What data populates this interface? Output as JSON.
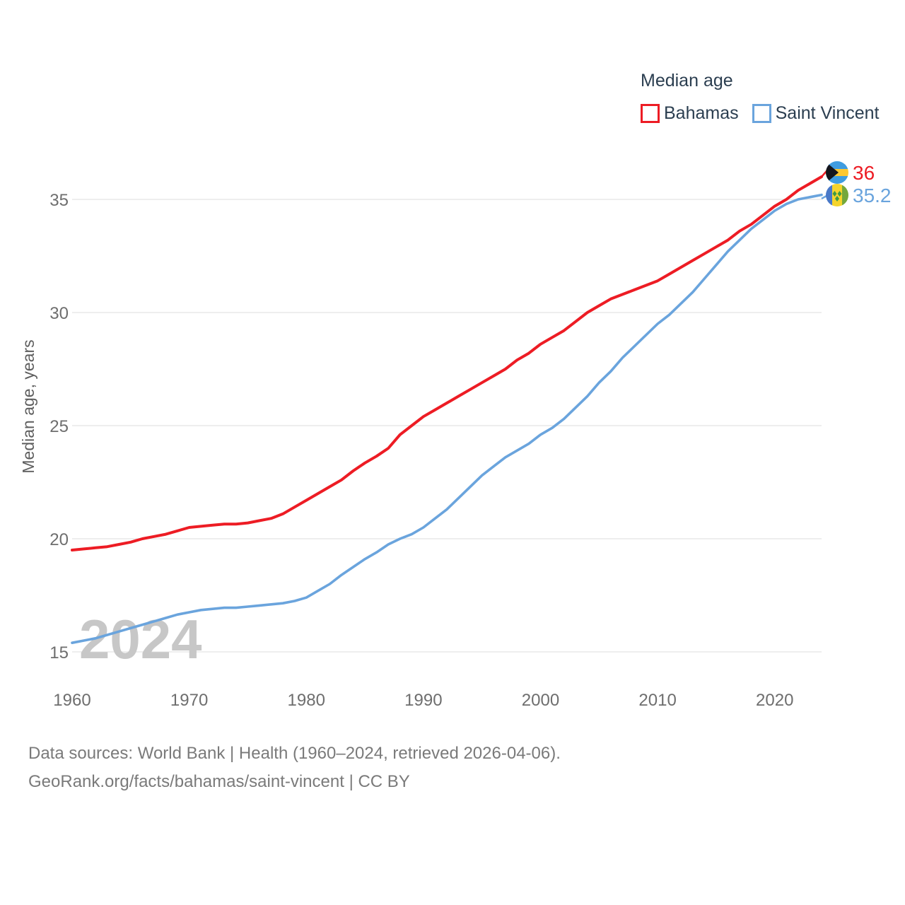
{
  "legend": {
    "title": "Median age",
    "items": [
      {
        "label": "Bahamas",
        "color": "#ed1c24"
      },
      {
        "label": "Saint Vincent",
        "color": "#6aa4dd"
      }
    ]
  },
  "end_labels": {
    "bahamas": "36",
    "saint_vincent": "35.2"
  },
  "watermark": "2024",
  "footer": {
    "line1": "Data sources: World Bank | Health (1960–2024, retrieved 2026-04-06).",
    "line2": "GeoRank.org/facts/bahamas/saint-vincent | CC BY"
  },
  "colors": {
    "bahamas_line": "#ed1c24",
    "saint_vincent_line": "#6aa4dd",
    "grid": "#e9e9e9",
    "tick_text": "#6e6e6e",
    "legend_text": "#2b3e50",
    "watermark": "#c7c7c7",
    "footer_text": "#7a7a7a"
  },
  "chart_data": {
    "type": "line",
    "title": "Median age",
    "xlabel": "",
    "ylabel": "Median age, years",
    "grid": "horizontal",
    "legend_position": "top-right",
    "xlim": [
      1960,
      2024
    ],
    "ylim": [
      14.5,
      37
    ],
    "xticks": [
      1960,
      1970,
      1980,
      1990,
      2000,
      2010,
      2020
    ],
    "yticks": [
      15,
      20,
      25,
      30,
      35
    ],
    "x": [
      1960,
      1961,
      1962,
      1963,
      1964,
      1965,
      1966,
      1967,
      1968,
      1969,
      1970,
      1971,
      1972,
      1973,
      1974,
      1975,
      1976,
      1977,
      1978,
      1979,
      1980,
      1981,
      1982,
      1983,
      1984,
      1985,
      1986,
      1987,
      1988,
      1989,
      1990,
      1991,
      1992,
      1993,
      1994,
      1995,
      1996,
      1997,
      1998,
      1999,
      2000,
      2001,
      2002,
      2003,
      2004,
      2005,
      2006,
      2007,
      2008,
      2009,
      2010,
      2011,
      2012,
      2013,
      2014,
      2015,
      2016,
      2017,
      2018,
      2019,
      2020,
      2021,
      2022,
      2023,
      2024
    ],
    "series": [
      {
        "name": "Bahamas",
        "color": "#ed1c24",
        "end_value": 36,
        "values": [
          19.5,
          19.55,
          19.6,
          19.65,
          19.75,
          19.85,
          20.0,
          20.1,
          20.2,
          20.35,
          20.5,
          20.55,
          20.6,
          20.65,
          20.65,
          20.7,
          20.8,
          20.9,
          21.1,
          21.4,
          21.7,
          22.0,
          22.3,
          22.6,
          23.0,
          23.35,
          23.65,
          24.0,
          24.6,
          25.0,
          25.4,
          25.7,
          26.0,
          26.3,
          26.6,
          26.9,
          27.2,
          27.5,
          27.9,
          28.2,
          28.6,
          28.9,
          29.2,
          29.6,
          30.0,
          30.3,
          30.6,
          30.8,
          31.0,
          31.2,
          31.4,
          31.7,
          32.0,
          32.3,
          32.6,
          32.9,
          33.2,
          33.6,
          33.9,
          34.3,
          34.7,
          35.0,
          35.4,
          35.7,
          36.0
        ]
      },
      {
        "name": "Saint Vincent",
        "color": "#6aa4dd",
        "end_value": 35.2,
        "values": [
          15.4,
          15.5,
          15.6,
          15.75,
          15.9,
          16.05,
          16.2,
          16.35,
          16.5,
          16.65,
          16.75,
          16.85,
          16.9,
          16.95,
          16.95,
          17.0,
          17.05,
          17.1,
          17.15,
          17.25,
          17.4,
          17.7,
          18.0,
          18.4,
          18.75,
          19.1,
          19.4,
          19.75,
          20.0,
          20.2,
          20.5,
          20.9,
          21.3,
          21.8,
          22.3,
          22.8,
          23.2,
          23.6,
          23.9,
          24.2,
          24.6,
          24.9,
          25.3,
          25.8,
          26.3,
          26.9,
          27.4,
          28.0,
          28.5,
          29.0,
          29.5,
          29.9,
          30.4,
          30.9,
          31.5,
          32.1,
          32.7,
          33.2,
          33.7,
          34.1,
          34.5,
          34.8,
          35.0,
          35.1,
          35.2
        ]
      }
    ]
  }
}
